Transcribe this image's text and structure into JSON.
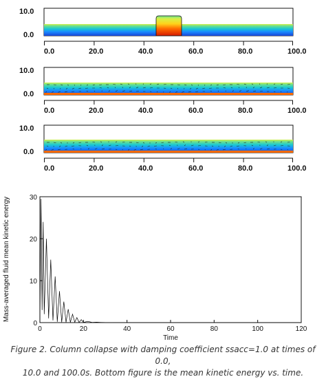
{
  "panels": [
    {
      "title": "",
      "time": "0.0",
      "yticks": [
        "10.0",
        "0.0"
      ],
      "xticks": [
        "0.0",
        "20.0",
        "40.0",
        "60.0",
        "80.0",
        "100.0"
      ]
    },
    {
      "title": "",
      "time": "10.0",
      "yticks": [
        "10.0",
        "0.0"
      ],
      "xticks": [
        "0.0",
        "20.0",
        "40.0",
        "60.0",
        "80.0",
        "100.0"
      ]
    },
    {
      "title": "",
      "time": "100.0",
      "yticks": [
        "10.0",
        "0.0"
      ],
      "xticks": [
        "0.0",
        "20.0",
        "40.0",
        "60.0",
        "80.0",
        "100.0"
      ]
    }
  ],
  "colormap": [
    "#d61a00",
    "#ff6a00",
    "#ffd21a",
    "#d7f046",
    "#6ee08c",
    "#1ac8d2",
    "#1a8cff",
    "#1a46d7"
  ],
  "chart_data": {
    "type": "line",
    "title": "",
    "xlabel": "Time",
    "ylabel": "Mass-averaged fluid mean kinetic energy",
    "xlim": [
      0,
      120
    ],
    "ylim": [
      0,
      30
    ],
    "xticks": [
      0,
      20,
      40,
      60,
      80,
      100,
      120
    ],
    "yticks": [
      0,
      10,
      20,
      30
    ],
    "grid": false,
    "series": [
      {
        "name": "",
        "color": "#000000",
        "x": [
          0,
          0.5,
          1.0,
          1.5,
          2.0,
          3.0,
          4.0,
          5.0,
          6.0,
          7.0,
          8.0,
          9.0,
          10.0,
          11.0,
          12.0,
          13.0,
          14.0,
          15.0,
          16.0,
          17.0,
          18.0,
          19.0,
          20.0,
          22.0,
          24.0,
          26.0,
          28.0,
          30.0
        ],
        "y": [
          0,
          29.5,
          3.0,
          24.0,
          2.0,
          20.0,
          1.0,
          15.0,
          0.5,
          11.0,
          0.2,
          7.5,
          0.1,
          5.0,
          0.1,
          3.2,
          0.1,
          2.0,
          0.1,
          1.2,
          0.05,
          0.7,
          0.05,
          0.3,
          0.05,
          0.1,
          0.05,
          0.02
        ]
      }
    ]
  },
  "caption": {
    "line1": "Figure 2. Column collapse with damping coefficient ssacc=1.0 at times of 0.0,",
    "line2": "10.0 and 100.0s. Bottom figure is the mean kinetic energy vs. time."
  }
}
